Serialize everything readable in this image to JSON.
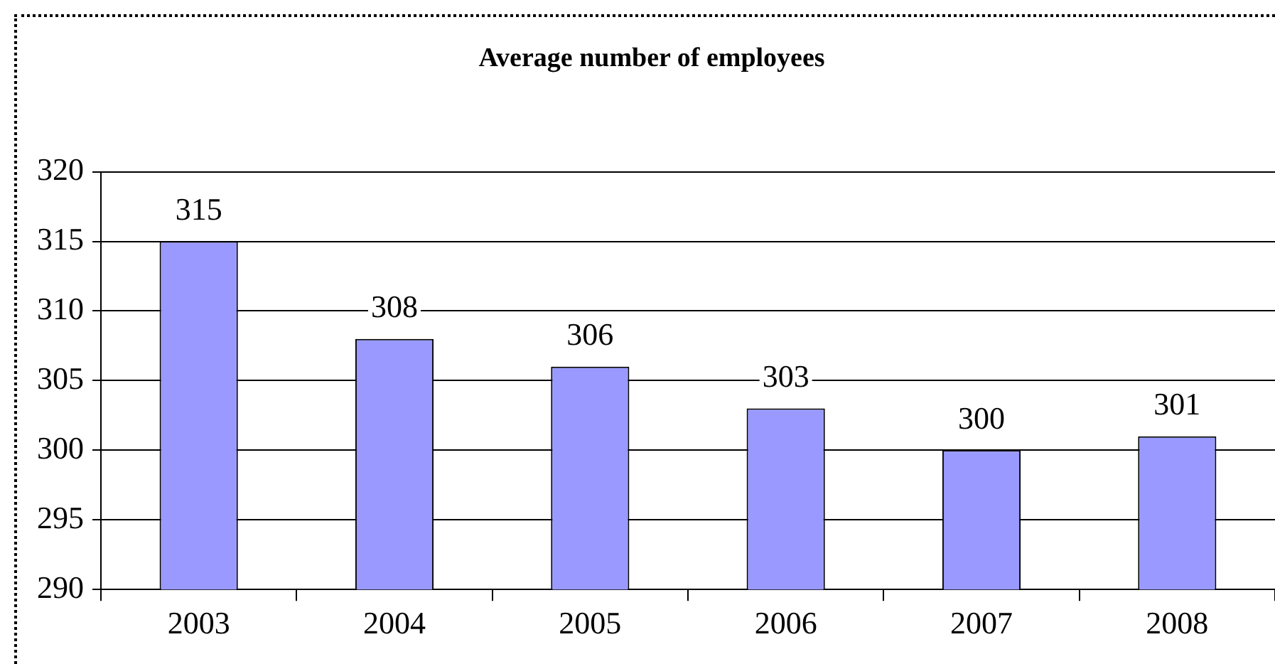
{
  "chart_data": {
    "type": "bar",
    "title": "Average number of employees",
    "categories": [
      "2003",
      "2004",
      "2005",
      "2006",
      "2007",
      "2008"
    ],
    "values": [
      315,
      308,
      306,
      303,
      300,
      301
    ],
    "color": "#9999ff",
    "ylim": [
      290,
      320
    ],
    "yticks": [
      290,
      295,
      300,
      305,
      310,
      315,
      320
    ],
    "grid": "y",
    "data_labels": true,
    "legend": false
  }
}
